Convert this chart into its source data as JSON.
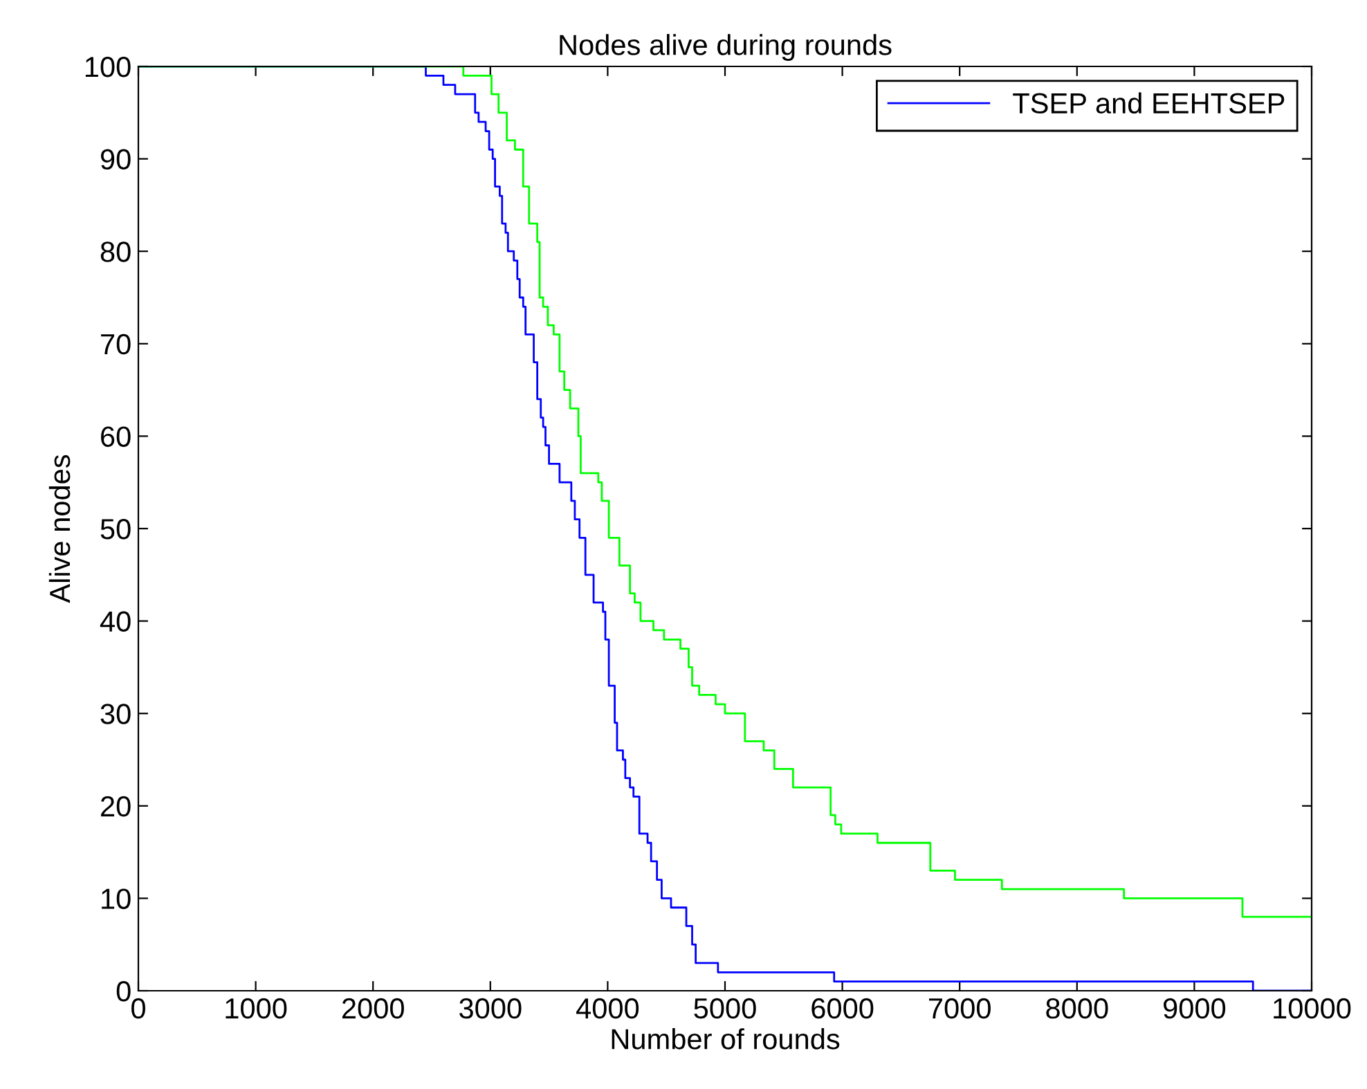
{
  "chart_data": {
    "type": "step",
    "title": "Nodes alive during rounds",
    "xlabel": "Number of rounds",
    "ylabel": "Alive nodes",
    "xlim": [
      0,
      10000
    ],
    "ylim": [
      0,
      100
    ],
    "xticks": [
      0,
      1000,
      2000,
      3000,
      4000,
      5000,
      6000,
      7000,
      8000,
      9000,
      10000
    ],
    "yticks": [
      0,
      10,
      20,
      30,
      40,
      50,
      60,
      70,
      80,
      90,
      100
    ],
    "grid": false,
    "legend": "top right",
    "series": [
      {
        "name": "TSEP and EEHTSEP",
        "color": "#0000ff",
        "x": [
          0,
          2450,
          2600,
          2700,
          2870,
          2900,
          2960,
          2990,
          3020,
          3040,
          3080,
          3100,
          3130,
          3150,
          3200,
          3230,
          3250,
          3280,
          3300,
          3370,
          3400,
          3430,
          3450,
          3470,
          3500,
          3590,
          3690,
          3720,
          3760,
          3810,
          3880,
          3960,
          3980,
          4010,
          4060,
          4080,
          4130,
          4150,
          4190,
          4220,
          4270,
          4340,
          4370,
          4420,
          4460,
          4540,
          4670,
          4720,
          4750,
          4940,
          5930,
          9500,
          10000
        ],
        "values": [
          100,
          99,
          98,
          97,
          95,
          94,
          93,
          91,
          90,
          87,
          86,
          83,
          82,
          80,
          79,
          77,
          75,
          74,
          71,
          68,
          64,
          62,
          61,
          59,
          57,
          55,
          53,
          51,
          49,
          45,
          42,
          41,
          38,
          33,
          29,
          26,
          25,
          23,
          22,
          21,
          17,
          16,
          14,
          12,
          10,
          9,
          7,
          5,
          3,
          2,
          1,
          0,
          0
        ]
      },
      {
        "color": "#00ff00",
        "x": [
          0,
          2770,
          3010,
          3070,
          3140,
          3210,
          3280,
          3330,
          3400,
          3420,
          3450,
          3490,
          3540,
          3590,
          3630,
          3680,
          3750,
          3770,
          3920,
          3950,
          4010,
          4100,
          4190,
          4230,
          4280,
          4390,
          4480,
          4620,
          4690,
          4720,
          4780,
          4920,
          5000,
          5170,
          5330,
          5420,
          5580,
          5900,
          5940,
          5990,
          6300,
          6750,
          6960,
          7360,
          8400,
          9410,
          10000
        ],
        "values": [
          100,
          99,
          97,
          95,
          92,
          91,
          87,
          83,
          81,
          75,
          74,
          72,
          71,
          67,
          65,
          63,
          60,
          56,
          55,
          53,
          49,
          46,
          43,
          42,
          40,
          39,
          38,
          37,
          35,
          33,
          32,
          31,
          30,
          27,
          26,
          24,
          22,
          19,
          18,
          17,
          16,
          13,
          12,
          11,
          10,
          8,
          8
        ]
      }
    ]
  }
}
